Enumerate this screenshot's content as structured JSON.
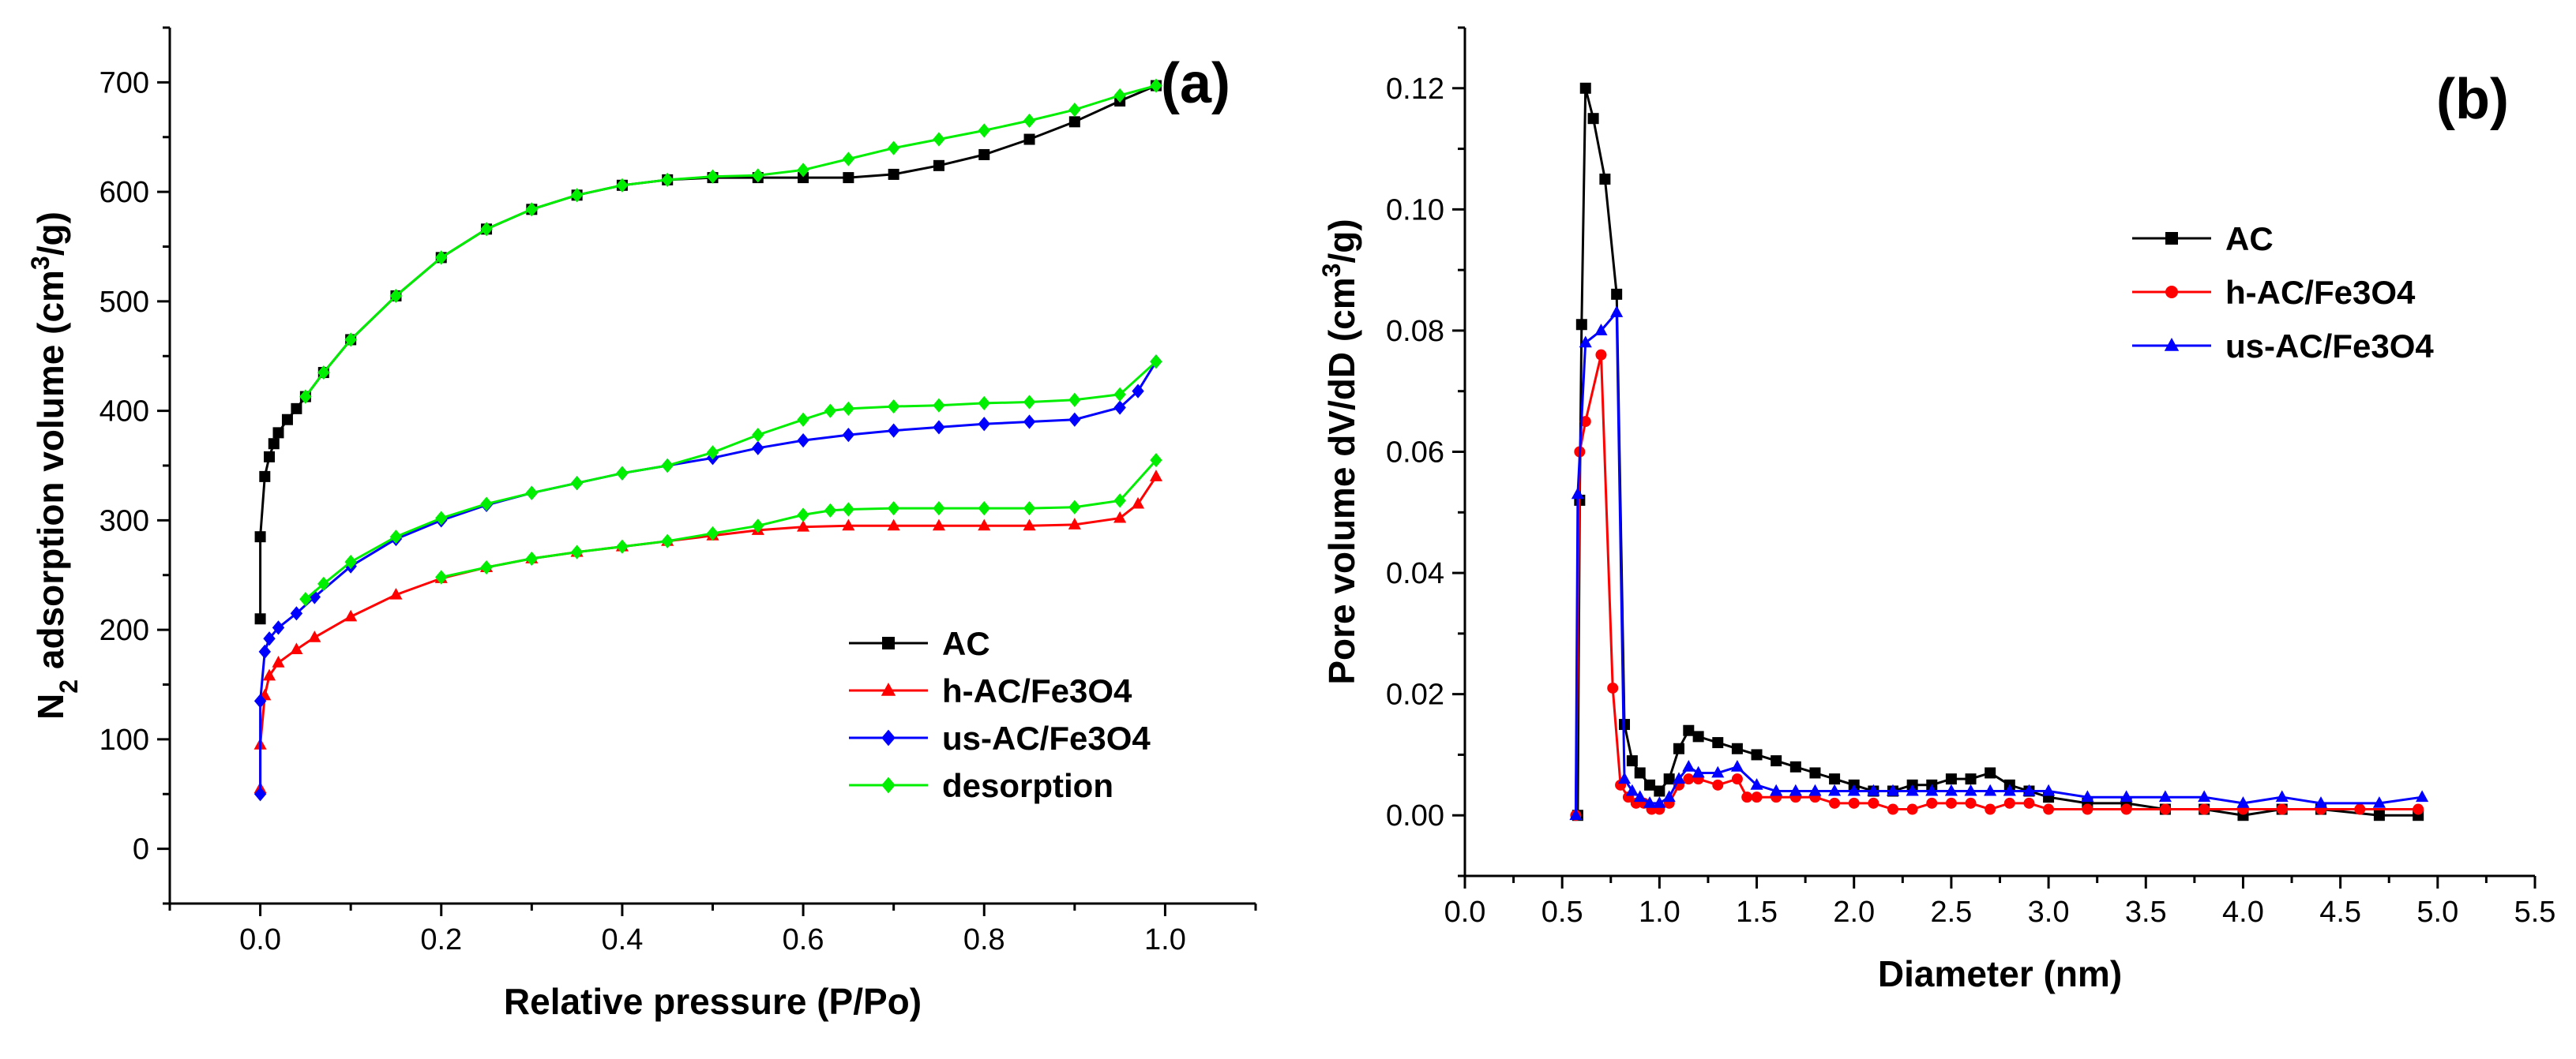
{
  "chart_data": [
    {
      "panel": "(a)",
      "type": "scatter-line",
      "xlabel": "Relative pressure (P/Po)",
      "ylabel_prefix": "N",
      "ylabel_sub": "2",
      "ylabel_mid": " adsorption volume (cm",
      "ylabel_sup": "3",
      "ylabel_suffix": "/g)",
      "xlim": [
        -0.1,
        1.1
      ],
      "ylim": [
        -50,
        750
      ],
      "xticks": [
        0.0,
        0.2,
        0.4,
        0.6,
        0.8,
        1.0
      ],
      "xtick_labels": [
        "0.0",
        "0.2",
        "0.4",
        "0.6",
        "0.8",
        "1.0"
      ],
      "yticks": [
        0,
        100,
        200,
        300,
        400,
        500,
        600,
        700
      ],
      "ytick_labels": [
        "0",
        "100",
        "200",
        "300",
        "400",
        "500",
        "600",
        "700"
      ],
      "legend_position": "bottom-right",
      "series": [
        {
          "name": "AC",
          "color": "#000000",
          "marker": "square",
          "x": [
            0.0,
            0.0,
            0.005,
            0.01,
            0.015,
            0.02,
            0.03,
            0.04,
            0.05,
            0.07,
            0.1,
            0.15,
            0.2,
            0.25,
            0.3,
            0.35,
            0.4,
            0.45,
            0.5,
            0.55,
            0.6,
            0.65,
            0.7,
            0.75,
            0.8,
            0.85,
            0.9,
            0.95,
            0.99
          ],
          "y": [
            210,
            285,
            340,
            358,
            370,
            380,
            392,
            402,
            413,
            435,
            465,
            505,
            540,
            566,
            584,
            597,
            606,
            611,
            613,
            613,
            613,
            613,
            616,
            624,
            634,
            648,
            664,
            683,
            697
          ]
        },
        {
          "name": "h-AC/Fe3O4",
          "color": "#ff0000",
          "marker": "triangle",
          "x": [
            0.0,
            0.0,
            0.005,
            0.01,
            0.02,
            0.04,
            0.06,
            0.1,
            0.15,
            0.2,
            0.25,
            0.3,
            0.35,
            0.4,
            0.45,
            0.5,
            0.55,
            0.6,
            0.65,
            0.7,
            0.75,
            0.8,
            0.85,
            0.9,
            0.95,
            0.97,
            0.99
          ],
          "y": [
            55,
            95,
            140,
            158,
            170,
            182,
            193,
            212,
            232,
            247,
            257,
            265,
            271,
            276,
            281,
            286,
            291,
            294,
            295,
            295,
            295,
            295,
            295,
            296,
            302,
            315,
            340
          ]
        },
        {
          "name": "us-AC/Fe3O4",
          "color": "#0000ff",
          "marker": "diamond",
          "x": [
            0.0,
            0.0,
            0.005,
            0.01,
            0.02,
            0.04,
            0.06,
            0.1,
            0.15,
            0.2,
            0.25,
            0.3,
            0.35,
            0.4,
            0.45,
            0.5,
            0.55,
            0.6,
            0.65,
            0.7,
            0.75,
            0.8,
            0.85,
            0.9,
            0.95,
            0.97,
            0.99
          ],
          "y": [
            50,
            135,
            180,
            192,
            202,
            215,
            230,
            258,
            283,
            300,
            314,
            325,
            334,
            343,
            350,
            357,
            366,
            373,
            378,
            382,
            385,
            388,
            390,
            392,
            403,
            418,
            445
          ]
        },
        {
          "name": "desorption",
          "color": "#00ee00",
          "marker": "diamond",
          "segments": [
            {
              "x": [
                0.05,
                0.07,
                0.1,
                0.15,
                0.2,
                0.25,
                0.3,
                0.35,
                0.4,
                0.45,
                0.5,
                0.55,
                0.6,
                0.65,
                0.7,
                0.75,
                0.8,
                0.85,
                0.9,
                0.95,
                0.99
              ],
              "y": [
                413,
                435,
                465,
                505,
                540,
                566,
                584,
                597,
                606,
                611,
                614,
                615,
                620,
                630,
                640,
                648,
                656,
                665,
                675,
                688,
                697
              ]
            },
            {
              "x": [
                0.05,
                0.07,
                0.1,
                0.15,
                0.2,
                0.25,
                0.3,
                0.35,
                0.4,
                0.45,
                0.5,
                0.55,
                0.6,
                0.63,
                0.65,
                0.7,
                0.75,
                0.8,
                0.85,
                0.9,
                0.95,
                0.99
              ],
              "y": [
                228,
                242,
                262,
                285,
                302,
                315,
                325,
                334,
                343,
                350,
                362,
                378,
                392,
                400,
                402,
                404,
                405,
                407,
                408,
                410,
                415,
                445
              ]
            },
            {
              "x": [
                0.2,
                0.25,
                0.3,
                0.35,
                0.4,
                0.45,
                0.5,
                0.55,
                0.6,
                0.63,
                0.65,
                0.7,
                0.75,
                0.8,
                0.85,
                0.9,
                0.95,
                0.99
              ],
              "y": [
                248,
                257,
                265,
                271,
                276,
                281,
                288,
                295,
                305,
                309,
                310,
                311,
                311,
                311,
                311,
                312,
                318,
                355
              ]
            }
          ]
        }
      ]
    },
    {
      "panel": "(b)",
      "type": "scatter-line",
      "xlabel": "Diameter (nm)",
      "ylabel_prefix": "Pore volume dV/dD (cm",
      "ylabel_sup": "3",
      "ylabel_suffix": "/g)",
      "xlim": [
        0.0,
        5.5
      ],
      "ylim": [
        -0.01,
        0.13
      ],
      "xticks": [
        0.0,
        0.5,
        1.0,
        1.5,
        2.0,
        2.5,
        3.0,
        3.5,
        4.0,
        4.5,
        5.0,
        5.5
      ],
      "xtick_labels": [
        "0.0",
        "0.5",
        "1.0",
        "1.5",
        "2.0",
        "2.5",
        "3.0",
        "3.5",
        "4.0",
        "4.5",
        "5.0",
        "5.5"
      ],
      "yticks": [
        0.0,
        0.02,
        0.04,
        0.06,
        0.08,
        0.1,
        0.12
      ],
      "ytick_labels": [
        "0.00",
        "0.02",
        "0.04",
        "0.06",
        "0.08",
        "0.10",
        "0.12"
      ],
      "legend_position": "top-right",
      "series": [
        {
          "name": "AC",
          "color": "#000000",
          "marker": "square",
          "x": [
            0.58,
            0.59,
            0.6,
            0.62,
            0.66,
            0.72,
            0.78,
            0.82,
            0.86,
            0.9,
            0.95,
            1.0,
            1.05,
            1.1,
            1.15,
            1.2,
            1.3,
            1.4,
            1.5,
            1.6,
            1.7,
            1.8,
            1.9,
            2.0,
            2.1,
            2.2,
            2.3,
            2.4,
            2.5,
            2.6,
            2.7,
            2.8,
            2.9,
            3.0,
            3.2,
            3.4,
            3.6,
            3.8,
            4.0,
            4.2,
            4.4,
            4.7,
            4.9
          ],
          "y": [
            0.0,
            0.052,
            0.081,
            0.12,
            0.115,
            0.105,
            0.086,
            0.015,
            0.009,
            0.007,
            0.005,
            0.004,
            0.006,
            0.011,
            0.014,
            0.013,
            0.012,
            0.011,
            0.01,
            0.009,
            0.008,
            0.007,
            0.006,
            0.005,
            0.004,
            0.004,
            0.005,
            0.005,
            0.006,
            0.006,
            0.007,
            0.005,
            0.004,
            0.003,
            0.002,
            0.002,
            0.001,
            0.001,
            0.0,
            0.001,
            0.001,
            0.0,
            0.0
          ]
        },
        {
          "name": "h-AC/Fe3O4",
          "color": "#ff0000",
          "marker": "circle",
          "x": [
            0.57,
            0.59,
            0.62,
            0.7,
            0.76,
            0.8,
            0.84,
            0.88,
            0.92,
            0.96,
            1.0,
            1.05,
            1.1,
            1.15,
            1.2,
            1.3,
            1.4,
            1.45,
            1.5,
            1.6,
            1.7,
            1.8,
            1.9,
            2.0,
            2.1,
            2.2,
            2.3,
            2.4,
            2.5,
            2.6,
            2.7,
            2.8,
            2.9,
            3.0,
            3.2,
            3.4,
            3.6,
            3.8,
            4.0,
            4.2,
            4.4,
            4.6,
            4.9
          ],
          "y": [
            0.0,
            0.06,
            0.065,
            0.076,
            0.021,
            0.005,
            0.003,
            0.002,
            0.002,
            0.001,
            0.001,
            0.002,
            0.005,
            0.006,
            0.006,
            0.005,
            0.006,
            0.003,
            0.003,
            0.003,
            0.003,
            0.003,
            0.002,
            0.002,
            0.002,
            0.001,
            0.001,
            0.002,
            0.002,
            0.002,
            0.001,
            0.002,
            0.002,
            0.001,
            0.001,
            0.001,
            0.001,
            0.001,
            0.001,
            0.001,
            0.001,
            0.001,
            0.001
          ]
        },
        {
          "name": "us-AC/Fe3O4",
          "color": "#0000ff",
          "marker": "triangle",
          "x": [
            0.57,
            0.58,
            0.62,
            0.7,
            0.78,
            0.82,
            0.86,
            0.9,
            0.95,
            1.0,
            1.05,
            1.1,
            1.15,
            1.2,
            1.3,
            1.4,
            1.5,
            1.6,
            1.7,
            1.8,
            1.9,
            2.0,
            2.1,
            2.2,
            2.3,
            2.4,
            2.5,
            2.6,
            2.7,
            2.8,
            2.9,
            3.0,
            3.2,
            3.4,
            3.6,
            3.8,
            4.0,
            4.2,
            4.4,
            4.7,
            4.92
          ],
          "y": [
            0.0,
            0.053,
            0.078,
            0.08,
            0.083,
            0.006,
            0.004,
            0.003,
            0.002,
            0.002,
            0.003,
            0.006,
            0.008,
            0.007,
            0.007,
            0.008,
            0.005,
            0.004,
            0.004,
            0.004,
            0.004,
            0.004,
            0.004,
            0.004,
            0.004,
            0.004,
            0.004,
            0.004,
            0.004,
            0.004,
            0.004,
            0.004,
            0.003,
            0.003,
            0.003,
            0.003,
            0.002,
            0.003,
            0.002,
            0.002,
            0.003
          ]
        }
      ]
    }
  ]
}
